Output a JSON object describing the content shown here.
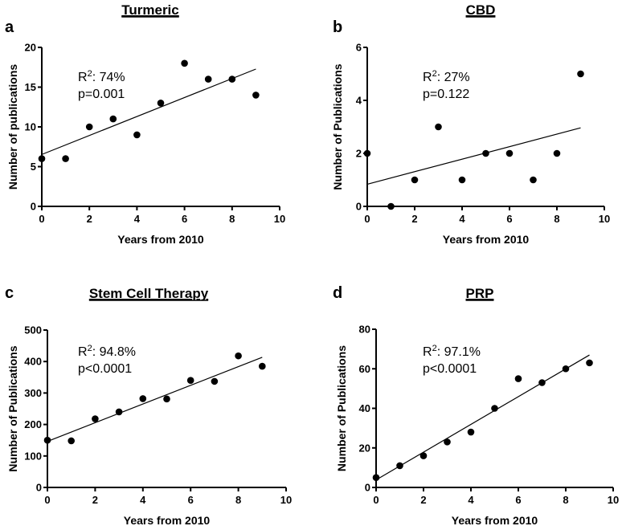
{
  "chart_data": [
    {
      "type": "scatter",
      "panel_label": "a",
      "title": "Turmeric",
      "xlabel": "Years from 2010",
      "ylabel": "Number of publications",
      "xlim": [
        0,
        10
      ],
      "ylim": [
        0,
        20
      ],
      "xticks": [
        0,
        2,
        4,
        6,
        8,
        10
      ],
      "yticks": [
        0,
        5,
        10,
        15,
        20
      ],
      "x": [
        0,
        1,
        2,
        3,
        4,
        5,
        6,
        7,
        8,
        9
      ],
      "y": [
        6,
        6,
        10,
        11,
        9,
        13,
        18,
        16,
        16,
        14
      ],
      "trendline": "linear",
      "annotation": {
        "r2_prefix": "R",
        "r2_sup": "2",
        "r2_value": ": 74%",
        "p": "p=0.001"
      },
      "grid": false
    },
    {
      "type": "scatter",
      "panel_label": "b",
      "title": "CBD",
      "xlabel": "Years from 2010",
      "ylabel": "Number of Publications",
      "xlim": [
        0,
        10
      ],
      "ylim": [
        0,
        6
      ],
      "xticks": [
        0,
        2,
        4,
        6,
        8,
        10
      ],
      "yticks": [
        0,
        2,
        4,
        6
      ],
      "x": [
        0,
        1,
        2,
        3,
        4,
        5,
        6,
        7,
        8,
        9
      ],
      "y": [
        2,
        0,
        1,
        3,
        1,
        2,
        2,
        1,
        2,
        5
      ],
      "trendline": "linear",
      "annotation": {
        "r2_prefix": "R",
        "r2_sup": "2",
        "r2_value": ": 27%",
        "p": "p=0.122"
      },
      "grid": false
    },
    {
      "type": "scatter",
      "panel_label": "c",
      "title": "Stem Cell Therapy",
      "xlabel": "Years from 2010",
      "ylabel": "Number of Publications",
      "xlim": [
        0,
        10
      ],
      "ylim": [
        0,
        500
      ],
      "xticks": [
        0,
        2,
        4,
        6,
        8,
        10
      ],
      "yticks": [
        0,
        100,
        200,
        300,
        400,
        500
      ],
      "x": [
        0,
        1,
        2,
        3,
        4,
        5,
        6,
        7,
        8,
        9
      ],
      "y": [
        150,
        148,
        218,
        240,
        282,
        281,
        340,
        337,
        418,
        385
      ],
      "trendline": "linear",
      "annotation": {
        "r2_prefix": "R",
        "r2_sup": "2",
        "r2_value": ": 94.8%",
        "p": "p<0.0001"
      },
      "grid": false
    },
    {
      "type": "scatter",
      "panel_label": "d",
      "title": "PRP",
      "xlabel": "Years from 2010",
      "ylabel": "Number of Publications",
      "xlim": [
        0,
        10
      ],
      "ylim": [
        0,
        80
      ],
      "xticks": [
        0,
        2,
        4,
        6,
        8,
        10
      ],
      "yticks": [
        0,
        20,
        40,
        60,
        80
      ],
      "x": [
        0,
        1,
        2,
        3,
        4,
        5,
        6,
        7,
        8,
        9
      ],
      "y": [
        5,
        11,
        16,
        23,
        28,
        40,
        55,
        53,
        60,
        63
      ],
      "trendline": "linear",
      "annotation": {
        "r2_prefix": "R",
        "r2_sup": "2",
        "r2_value": ": 97.1%",
        "p": "p<0.0001"
      },
      "grid": false
    }
  ]
}
